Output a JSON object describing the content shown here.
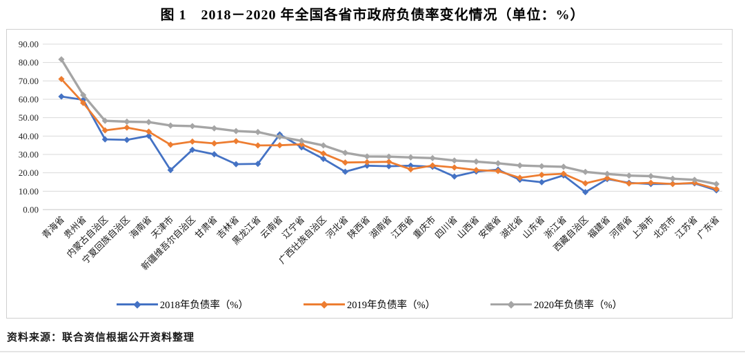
{
  "title": "图 1　2018－2020 年全国各省市政府负债率变化情况（单位：%）",
  "source_note": "资料来源：联合资信根据公开资料整理",
  "chart_data": {
    "type": "line",
    "title": "图 1　2018－2020 年全国各省市政府负债率变化情况（单位：%）",
    "xlabel": "",
    "ylabel": "",
    "ylim": [
      0,
      90
    ],
    "ytick_step": 10,
    "ytick_format": "two-decimal",
    "grid": true,
    "legend_position": "bottom",
    "x_label_rotation": -45,
    "marker": "diamond",
    "categories": [
      "青海省",
      "贵州省",
      "内蒙古自治区",
      "宁夏回族自治区",
      "海南省",
      "天津市",
      "新疆维吾尔自治区",
      "甘肃省",
      "吉林省",
      "黑龙江省",
      "云南省",
      "辽宁省",
      "广西壮族自治区",
      "河北省",
      "陕西省",
      "湖南省",
      "江西省",
      "重庆市",
      "四川省",
      "山西省",
      "安徽省",
      "湖北省",
      "山东省",
      "浙江省",
      "西藏自治区",
      "福建省",
      "河南省",
      "上海市",
      "北京市",
      "江苏省",
      "广东省"
    ],
    "series": [
      {
        "name": "2018年负债率（%）",
        "color": "#4472C4",
        "values": [
          61.5,
          59.7,
          38.2,
          37.9,
          40.1,
          21.5,
          32.5,
          30.1,
          24.7,
          24.9,
          40.9,
          33.9,
          27.6,
          20.6,
          23.9,
          23.6,
          23.9,
          23.3,
          18.0,
          20.7,
          21.7,
          16.2,
          14.9,
          18.6,
          9.5,
          16.6,
          14.6,
          13.9,
          14.0,
          14.3,
          10.5
        ]
      },
      {
        "name": "2019年负债率（%）",
        "color": "#ED7D31",
        "values": [
          71.0,
          58.0,
          43.1,
          44.6,
          42.4,
          35.3,
          37.0,
          36.0,
          37.2,
          34.9,
          35.0,
          35.5,
          30.5,
          25.6,
          25.8,
          26.0,
          21.9,
          24.0,
          22.9,
          21.5,
          21.0,
          17.3,
          18.9,
          19.5,
          14.3,
          17.1,
          14.2,
          14.6,
          13.9,
          14.6,
          11.2
        ]
      },
      {
        "name": "2020年负债率（%）",
        "color": "#A5A5A5",
        "values": [
          81.7,
          62.3,
          48.3,
          47.8,
          47.6,
          45.7,
          45.4,
          44.2,
          42.7,
          42.2,
          39.6,
          37.4,
          34.9,
          30.9,
          28.9,
          28.8,
          28.4,
          28.0,
          26.7,
          26.1,
          25.2,
          24.0,
          23.6,
          23.3,
          20.5,
          19.4,
          18.5,
          18.2,
          16.8,
          16.2,
          13.9
        ]
      }
    ]
  }
}
